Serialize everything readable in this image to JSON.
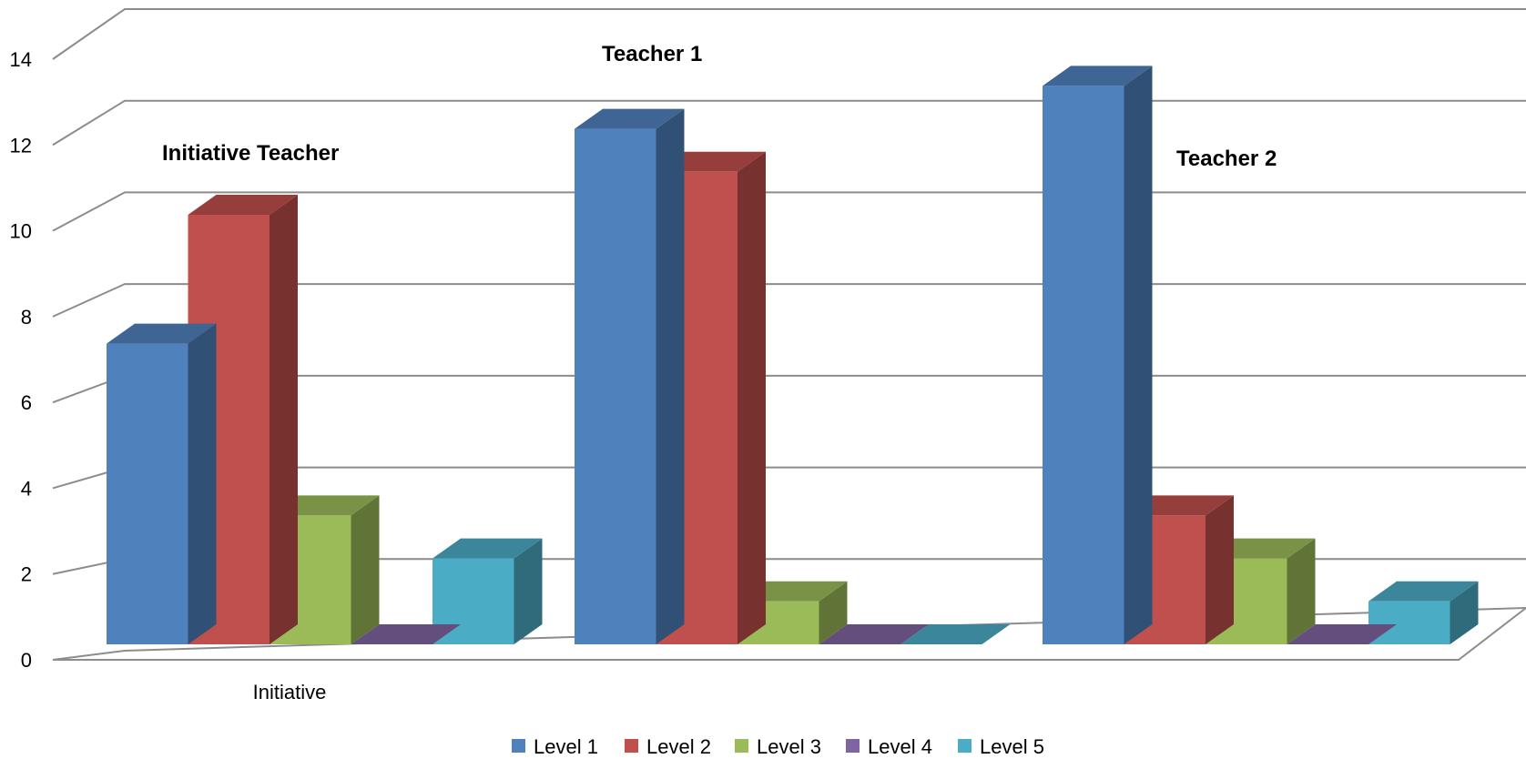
{
  "chart_data": {
    "type": "bar",
    "categories": [
      "Initiative",
      "",
      ""
    ],
    "series": [
      {
        "name": "Level 1",
        "color": "#4F81BD",
        "values": [
          7,
          12,
          13
        ]
      },
      {
        "name": "Level 2",
        "color": "#C0504D",
        "values": [
          10,
          11,
          3
        ]
      },
      {
        "name": "Level 3",
        "color": "#9BBB59",
        "values": [
          3,
          1,
          2
        ]
      },
      {
        "name": "Level 4",
        "color": "#8064A2",
        "values": [
          0,
          0,
          0
        ]
      },
      {
        "name": "Level 5",
        "color": "#4BACC6",
        "values": [
          2,
          0,
          1
        ]
      }
    ],
    "annotations": [
      "Initiative Teacher",
      "Teacher 1",
      "Teacher 2"
    ],
    "ylim": [
      0,
      14
    ],
    "yticks": [
      0,
      2,
      4,
      6,
      8,
      10,
      12,
      14
    ],
    "grid": true,
    "style": "3d-clustered-column",
    "legend_position": "bottom"
  }
}
